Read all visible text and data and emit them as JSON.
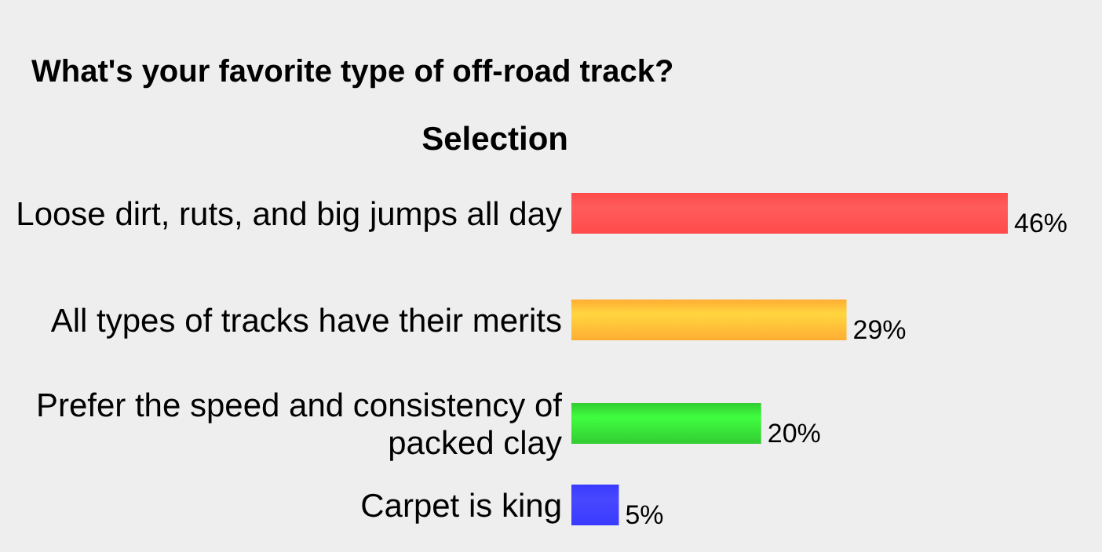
{
  "chart_data": {
    "type": "bar",
    "orientation": "horizontal",
    "title": "What's your favorite type of off-road track?",
    "ylabel": "Selection",
    "categories": [
      "Loose dirt, ruts, and big jumps all day",
      "All types of tracks have their merits",
      "Prefer the speed and consistency of packed clay",
      "Carpet is king"
    ],
    "values": [
      46,
      29,
      20,
      5
    ],
    "colors": [
      "#ff4a4a",
      "#ffad33",
      "#33cc33",
      "#3a3aff"
    ],
    "value_labels": [
      "46%",
      "29%",
      "20%",
      "5%"
    ]
  }
}
